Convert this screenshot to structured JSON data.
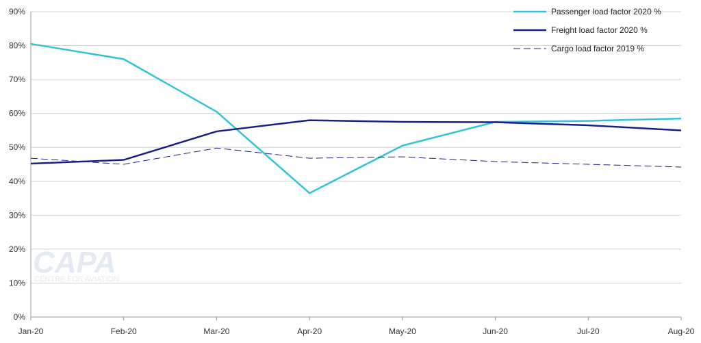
{
  "watermark": {
    "brand": "CAPA",
    "tagline": "CENTRE FOR AVIATION"
  },
  "chart_data": {
    "type": "line",
    "categories": [
      "Jan-20",
      "Feb-20",
      "Mar-20",
      "Apr-20",
      "May-20",
      "Jun-20",
      "Jul-20",
      "Aug-20"
    ],
    "ylim": [
      0,
      90
    ],
    "yticks": [
      "0%",
      "10%",
      "20%",
      "30%",
      "40%",
      "50%",
      "60%",
      "70%",
      "80%",
      "90%"
    ],
    "grid": true,
    "legend_position": "top-right",
    "series": [
      {
        "name": "Passenger load factor 2020 %",
        "values": [
          80.5,
          76,
          60.5,
          36.5,
          50.5,
          57.5,
          57.8,
          58.5
        ],
        "color": "#33c3d9",
        "style": "solid"
      },
      {
        "name": "Freight load factor 2020 %",
        "values": [
          45.2,
          46.3,
          54.7,
          58,
          57.5,
          57.4,
          56.5,
          55
        ],
        "color": "#1a1f8c",
        "style": "solid"
      },
      {
        "name": "Cargo load factor 2019 %",
        "values": [
          46.8,
          45,
          49.8,
          46.8,
          47.2,
          45.8,
          45,
          44.2
        ],
        "color": "#1a1f8c",
        "style": "dashed"
      }
    ]
  }
}
